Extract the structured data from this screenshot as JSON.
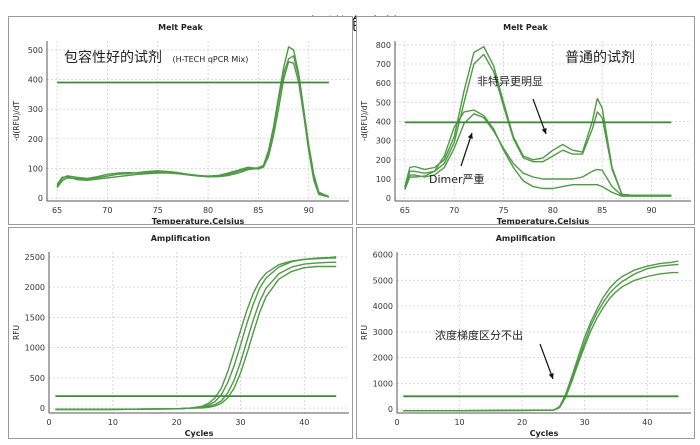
{
  "title": "对引物包容性",
  "panels": [
    {
      "id": "p1",
      "note": {
        "text": "包容性好的试剂",
        "sub": "(H-TECH qPCR Mix)"
      }
    },
    {
      "id": "p2",
      "note": {
        "text": "普通的试剂"
      },
      "annotations": [
        {
          "text": "非特异更明显"
        },
        {
          "text": "Dimer严重"
        }
      ]
    },
    {
      "id": "p3"
    },
    {
      "id": "p4",
      "annotations": [
        {
          "text": "浓度梯度区分不出"
        }
      ]
    }
  ],
  "chart_data": [
    {
      "type": "line",
      "title": "Melt Peak",
      "xlabel": "Temperature,Celsius",
      "ylabel": "-d(RFU)/dT",
      "xlim": [
        64,
        94
      ],
      "ylim": [
        -10,
        530
      ],
      "xticks": [
        65,
        70,
        75,
        80,
        85,
        90
      ],
      "yticks": [
        0,
        100,
        200,
        300,
        400,
        500
      ],
      "grid": true,
      "series": [
        {
          "x": [
            65,
            65.5,
            66,
            67,
            68,
            69,
            70,
            71,
            72,
            73,
            74,
            75,
            76,
            77,
            78,
            79,
            80,
            81,
            82,
            83,
            84,
            85,
            85.5,
            86,
            86.5,
            87,
            87.5,
            88,
            88.5,
            89,
            89.5,
            90,
            90.5,
            91,
            92
          ],
          "values": [
            40,
            65,
            75,
            70,
            66,
            72,
            80,
            84,
            86,
            84,
            86,
            88,
            86,
            82,
            78,
            74,
            72,
            74,
            80,
            90,
            100,
            102,
            110,
            160,
            240,
            340,
            440,
            510,
            500,
            420,
            300,
            180,
            80,
            20,
            5
          ]
        },
        {
          "x": [
            65,
            65.5,
            66,
            67,
            68,
            69,
            70,
            71,
            72,
            73,
            74,
            75,
            76,
            77,
            78,
            79,
            80,
            81,
            82,
            83,
            84,
            85,
            85.5,
            86,
            86.5,
            87,
            87.5,
            88,
            88.5,
            89,
            89.5,
            90,
            90.5,
            91,
            92
          ],
          "values": [
            35,
            58,
            68,
            66,
            64,
            68,
            74,
            80,
            82,
            86,
            90,
            92,
            90,
            86,
            80,
            76,
            72,
            72,
            76,
            84,
            96,
            100,
            106,
            150,
            230,
            330,
            420,
            470,
            480,
            410,
            290,
            170,
            70,
            15,
            5
          ]
        },
        {
          "x": [
            65,
            65.5,
            66,
            67,
            68,
            69,
            70,
            71,
            72,
            73,
            74,
            75,
            76,
            77,
            78,
            79,
            80,
            81,
            82,
            83,
            84,
            85,
            85.5,
            86,
            86.5,
            87,
            87.5,
            88,
            88.5,
            89,
            89.5,
            90,
            90.5,
            91,
            92
          ],
          "values": [
            45,
            70,
            72,
            62,
            60,
            64,
            68,
            72,
            76,
            80,
            82,
            84,
            84,
            82,
            80,
            76,
            74,
            76,
            84,
            94,
            104,
            98,
            104,
            140,
            210,
            300,
            400,
            460,
            455,
            390,
            280,
            160,
            60,
            12,
            4
          ]
        },
        {
          "x": [
            65,
            92
          ],
          "values": [
            390,
            390
          ]
        }
      ]
    },
    {
      "type": "line",
      "title": "Melt Peak",
      "xlabel": "Temperature,Celsius",
      "ylabel": "-d(RFU)/dT",
      "xlim": [
        64,
        94
      ],
      "ylim": [
        -15,
        820
      ],
      "xticks": [
        65,
        70,
        75,
        80,
        85,
        90
      ],
      "yticks": [
        0,
        100,
        200,
        300,
        400,
        500,
        600,
        700,
        800
      ],
      "grid": true,
      "series": [
        {
          "x": [
            65,
            65.5,
            66,
            67,
            68,
            69,
            70,
            71,
            72,
            73,
            74,
            75,
            76,
            77,
            78,
            79,
            80,
            81,
            82,
            83,
            84,
            84.5,
            85,
            86,
            87,
            88,
            89,
            90,
            91,
            92
          ],
          "values": [
            60,
            160,
            165,
            150,
            160,
            200,
            320,
            560,
            760,
            790,
            690,
            500,
            320,
            220,
            200,
            210,
            250,
            280,
            250,
            240,
            400,
            520,
            470,
            160,
            20,
            15,
            15,
            15,
            15,
            15
          ]
        },
        {
          "x": [
            65,
            65.5,
            66,
            67,
            68,
            69,
            70,
            71,
            72,
            73,
            74,
            75,
            76,
            77,
            78,
            79,
            80,
            81,
            82,
            83,
            84,
            84.5,
            85,
            86,
            87,
            88,
            89,
            90,
            91,
            92
          ],
          "values": [
            55,
            140,
            140,
            130,
            140,
            180,
            290,
            500,
            700,
            750,
            660,
            480,
            310,
            210,
            190,
            190,
            220,
            250,
            230,
            230,
            360,
            450,
            420,
            150,
            20,
            15,
            15,
            15,
            15,
            15
          ]
        },
        {
          "x": [
            65,
            65.5,
            66,
            67,
            68,
            69,
            70,
            71,
            72,
            73,
            74,
            75,
            76,
            77,
            78,
            79,
            80,
            81,
            82,
            83,
            84,
            84.5,
            85,
            86,
            87,
            88,
            89,
            90,
            91,
            92
          ],
          "values": [
            50,
            120,
            120,
            110,
            120,
            160,
            260,
            390,
            440,
            420,
            350,
            260,
            180,
            130,
            110,
            100,
            100,
            100,
            100,
            110,
            140,
            150,
            145,
            60,
            15,
            12,
            12,
            12,
            12,
            12
          ]
        },
        {
          "x": [
            65,
            65.5,
            66,
            67,
            68,
            69,
            70,
            71,
            72,
            73,
            74,
            75,
            76,
            77,
            78,
            79,
            80,
            81,
            82,
            83,
            84,
            84.5,
            85,
            86,
            87,
            88,
            89,
            90,
            91,
            92
          ],
          "values": [
            45,
            110,
            110,
            115,
            140,
            220,
            370,
            450,
            460,
            430,
            360,
            250,
            160,
            90,
            60,
            50,
            50,
            60,
            70,
            70,
            70,
            70,
            60,
            30,
            10,
            10,
            10,
            10,
            10,
            10
          ]
        },
        {
          "x": [
            65,
            92
          ],
          "values": [
            395,
            395
          ]
        }
      ]
    },
    {
      "type": "line",
      "title": "Amplification",
      "xlabel": "Cycles",
      "ylabel": "RFU",
      "xlim": [
        0,
        47
      ],
      "ylim": [
        -80,
        2580
      ],
      "xticks": [
        0,
        10,
        20,
        30,
        40
      ],
      "yticks": [
        0,
        500,
        1000,
        1500,
        2000,
        2500
      ],
      "grid": true,
      "series": [
        {
          "x": [
            1,
            5,
            10,
            15,
            20,
            22,
            24,
            25,
            26,
            27,
            28,
            29,
            30,
            31,
            32,
            33,
            34,
            36,
            38,
            40,
            42,
            44,
            45
          ],
          "values": [
            -20,
            -20,
            -20,
            -15,
            -10,
            0,
            30,
            80,
            170,
            330,
            600,
            940,
            1280,
            1620,
            1900,
            2100,
            2230,
            2370,
            2430,
            2460,
            2470,
            2480,
            2480
          ]
        },
        {
          "x": [
            1,
            5,
            10,
            15,
            20,
            22,
            24,
            25,
            26,
            27,
            28,
            29,
            30,
            31,
            32,
            33,
            34,
            36,
            38,
            40,
            42,
            44,
            45
          ],
          "values": [
            -20,
            -20,
            -20,
            -15,
            -10,
            0,
            20,
            50,
            110,
            220,
            420,
            700,
            1040,
            1400,
            1720,
            1980,
            2150,
            2330,
            2420,
            2460,
            2480,
            2490,
            2500
          ]
        },
        {
          "x": [
            1,
            5,
            10,
            15,
            20,
            22,
            24,
            25,
            26,
            27,
            28,
            29,
            30,
            31,
            32,
            33,
            34,
            36,
            38,
            40,
            42,
            44,
            45
          ],
          "values": [
            -20,
            -20,
            -20,
            -15,
            -10,
            0,
            10,
            30,
            60,
            120,
            250,
            460,
            760,
            1110,
            1460,
            1760,
            1980,
            2220,
            2330,
            2380,
            2400,
            2410,
            2410
          ]
        },
        {
          "x": [
            1,
            5,
            10,
            15,
            20,
            22,
            24,
            25,
            26,
            27,
            28,
            29,
            30,
            31,
            32,
            33,
            34,
            36,
            38,
            40,
            42,
            44,
            45
          ],
          "values": [
            -20,
            -20,
            -20,
            -15,
            -10,
            0,
            5,
            15,
            35,
            80,
            170,
            330,
            580,
            900,
            1250,
            1580,
            1840,
            2130,
            2260,
            2320,
            2340,
            2340,
            2340
          ]
        },
        {
          "x": [
            1,
            45
          ],
          "values": [
            200,
            200
          ]
        }
      ]
    },
    {
      "type": "line",
      "title": "Amplification",
      "xlabel": "Cycles",
      "ylabel": "RFU",
      "xlim": [
        0,
        47
      ],
      "ylim": [
        -150,
        6100
      ],
      "xticks": [
        0,
        10,
        20,
        30,
        40
      ],
      "yticks": [
        0,
        1000,
        2000,
        3000,
        4000,
        5000,
        6000
      ],
      "grid": true,
      "series": [
        {
          "x": [
            1,
            10,
            20,
            25,
            26,
            27,
            28,
            29,
            30,
            31,
            32,
            33,
            34,
            35,
            36,
            38,
            40,
            42,
            44,
            45
          ],
          "values": [
            -60,
            -60,
            -50,
            -40,
            100,
            600,
            1300,
            2050,
            2800,
            3400,
            3900,
            4350,
            4700,
            4950,
            5150,
            5400,
            5550,
            5650,
            5700,
            5750
          ]
        },
        {
          "x": [
            1,
            10,
            20,
            25,
            26,
            27,
            28,
            29,
            30,
            31,
            32,
            33,
            34,
            35,
            36,
            38,
            40,
            42,
            44,
            45
          ],
          "values": [
            -60,
            -60,
            -50,
            -40,
            80,
            550,
            1200,
            1900,
            2600,
            3250,
            3750,
            4150,
            4500,
            4750,
            4950,
            5250,
            5450,
            5550,
            5600,
            5620
          ]
        },
        {
          "x": [
            1,
            10,
            20,
            25,
            26,
            27,
            28,
            29,
            30,
            31,
            32,
            33,
            34,
            35,
            36,
            38,
            40,
            42,
            44,
            45
          ],
          "values": [
            -60,
            -60,
            -50,
            -40,
            60,
            480,
            1100,
            1800,
            2450,
            3050,
            3550,
            3950,
            4300,
            4550,
            4750,
            5000,
            5150,
            5250,
            5300,
            5300
          ]
        },
        {
          "x": [
            1,
            45
          ],
          "values": [
            500,
            500
          ]
        }
      ]
    }
  ]
}
